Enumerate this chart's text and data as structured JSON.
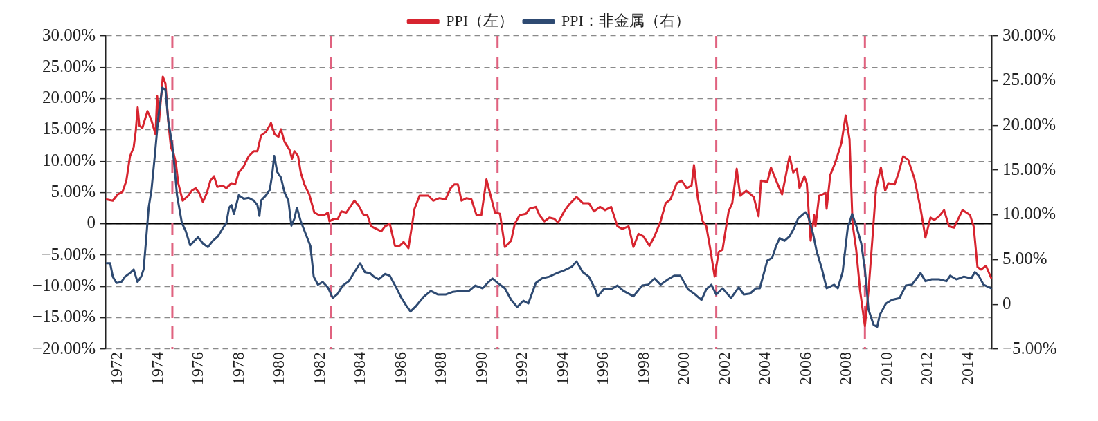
{
  "chart_data": {
    "type": "line",
    "legend": "top",
    "grid": "y",
    "marker": "none",
    "line_style": "solid",
    "xlim": [
      1971.42,
      2015.18
    ],
    "xticks": [
      1972,
      1974,
      1976,
      1978,
      1980,
      1982,
      1984,
      1986,
      1988,
      1990,
      1992,
      1994,
      1996,
      1998,
      2000,
      2002,
      2004,
      2006,
      2008,
      2010,
      2012,
      2014
    ],
    "ylim": [
      -20,
      30
    ],
    "yticks": [
      {
        "value": 30,
        "label": "30.00%"
      },
      {
        "value": 25,
        "label": "25.00%"
      },
      {
        "value": 20,
        "label": "20.00%"
      },
      {
        "value": 15,
        "label": "15.00%"
      },
      {
        "value": 10,
        "label": "10.00%"
      },
      {
        "value": 5,
        "label": "5.00%"
      },
      {
        "value": 0,
        "label": "0"
      },
      {
        "value": -5,
        "label": "−5.00%"
      },
      {
        "value": -10,
        "label": "−10.00%"
      },
      {
        "value": -15,
        "label": "−15.00%"
      },
      {
        "value": -20,
        "label": "−20.00%"
      }
    ],
    "y2lim": [
      -5,
      30
    ],
    "y2ticks": [
      {
        "value": 30,
        "label": "30.00%"
      },
      {
        "value": 25,
        "label": "25.00%"
      },
      {
        "value": 20,
        "label": "20.00%"
      },
      {
        "value": 15,
        "label": "15.00%"
      },
      {
        "value": 10,
        "label": "10.00%"
      },
      {
        "value": 5,
        "label": "5.00%"
      },
      {
        "value": 0,
        "label": "0"
      },
      {
        "value": -5,
        "label": "−5.00%"
      }
    ],
    "ref_lines": [
      {
        "axis": "y",
        "value": 0,
        "color": "#000000",
        "line_style": "solid"
      },
      {
        "axis": "x",
        "value": 1974.7,
        "color": "#e0627f",
        "line_style": "dashed"
      },
      {
        "axis": "x",
        "value": 1982.53,
        "color": "#e0627f",
        "line_style": "dashed"
      },
      {
        "axis": "x",
        "value": 1990.76,
        "color": "#e0627f",
        "line_style": "dashed"
      },
      {
        "axis": "x",
        "value": 2001.56,
        "color": "#e0627f",
        "line_style": "dashed"
      },
      {
        "axis": "x",
        "value": 2008.9,
        "color": "#e0627f",
        "line_style": "dashed"
      }
    ],
    "series": [
      {
        "name": "PPI（左）",
        "color": "#d7242f",
        "x": [
          1971.45,
          1971.76,
          1972.0,
          1972.24,
          1972.43,
          1972.61,
          1972.79,
          1972.89,
          1972.99,
          1973.07,
          1973.22,
          1973.47,
          1973.65,
          1973.87,
          1973.95,
          1974.04,
          1974.23,
          1974.36,
          1974.5,
          1974.63,
          1974.75,
          1974.87,
          1974.99,
          1975.21,
          1975.48,
          1975.66,
          1975.85,
          1976.03,
          1976.21,
          1976.4,
          1976.58,
          1976.76,
          1976.92,
          1977.19,
          1977.37,
          1977.62,
          1977.8,
          1977.98,
          1978.23,
          1978.47,
          1978.72,
          1978.9,
          1979.08,
          1979.33,
          1979.57,
          1979.75,
          1979.94,
          1980.06,
          1980.24,
          1980.49,
          1980.61,
          1980.73,
          1980.91,
          1981.04,
          1981.22,
          1981.46,
          1981.71,
          1981.95,
          1982.2,
          1982.38,
          1982.46,
          1982.68,
          1982.87,
          1983.05,
          1983.29,
          1983.48,
          1983.69,
          1983.9,
          1984.15,
          1984.33,
          1984.52,
          1985.02,
          1985.2,
          1985.44,
          1985.69,
          1985.93,
          1986.12,
          1986.36,
          1986.66,
          1986.91,
          1987.34,
          1987.58,
          1987.89,
          1988.19,
          1988.44,
          1988.62,
          1988.8,
          1988.98,
          1989.23,
          1989.47,
          1989.72,
          1989.96,
          1990.21,
          1990.45,
          1990.63,
          1990.88,
          1991.12,
          1991.43,
          1991.61,
          1991.85,
          1992.16,
          1992.34,
          1992.65,
          1992.83,
          1993.07,
          1993.32,
          1993.56,
          1993.75,
          1994.05,
          1994.3,
          1994.66,
          1994.97,
          1995.27,
          1995.52,
          1995.82,
          1996.07,
          1996.37,
          1996.68,
          1996.92,
          1997.23,
          1997.47,
          1997.72,
          1997.96,
          1998.26,
          1998.51,
          1998.81,
          1999.06,
          1999.3,
          1999.61,
          1999.85,
          2000.1,
          2000.34,
          2000.46,
          2000.65,
          2000.89,
          2001.07,
          2001.26,
          2001.48,
          2001.68,
          2001.87,
          2002.17,
          2002.35,
          2002.57,
          2002.74,
          2003.04,
          2003.41,
          2003.65,
          2003.77,
          2004.08,
          2004.26,
          2004.57,
          2004.81,
          2005.18,
          2005.36,
          2005.54,
          2005.67,
          2005.91,
          2006.03,
          2006.22,
          2006.4,
          2006.46,
          2006.64,
          2006.95,
          2007.01,
          2007.19,
          2007.44,
          2007.74,
          2007.95,
          2008.14,
          2008.29,
          2008.47,
          2008.66,
          2008.78,
          2008.9,
          2009.08,
          2009.27,
          2009.45,
          2009.69,
          2009.9,
          2010.06,
          2010.37,
          2010.55,
          2010.79,
          2011.04,
          2011.34,
          2011.65,
          2011.89,
          2012.14,
          2012.32,
          2012.56,
          2012.81,
          2013.05,
          2013.3,
          2013.48,
          2013.72,
          2014.09,
          2014.27,
          2014.46,
          2014.64,
          2014.88,
          2015.13
        ],
        "values": [
          3.9,
          3.7,
          4.7,
          5.1,
          6.9,
          10.8,
          12.2,
          14.7,
          18.6,
          15.7,
          15.3,
          18.0,
          16.7,
          14.3,
          20.4,
          16.3,
          23.5,
          22.4,
          16.3,
          12.2,
          11.4,
          9.8,
          6.5,
          3.7,
          4.5,
          5.3,
          5.7,
          4.9,
          3.5,
          4.9,
          6.9,
          7.6,
          5.9,
          6.1,
          5.7,
          6.5,
          6.3,
          8.2,
          9.2,
          10.8,
          11.6,
          11.6,
          14.1,
          14.7,
          16.1,
          14.3,
          13.9,
          15.1,
          13.1,
          11.8,
          10.4,
          11.6,
          10.8,
          8.2,
          6.3,
          4.7,
          1.8,
          1.4,
          1.4,
          1.8,
          0.4,
          0.8,
          0.8,
          2.0,
          1.8,
          2.7,
          3.7,
          2.9,
          1.4,
          1.4,
          -0.4,
          -1.2,
          -0.4,
          0,
          -3.5,
          -3.5,
          -2.9,
          -3.9,
          2.4,
          4.5,
          4.5,
          3.7,
          4.1,
          3.9,
          5.7,
          6.3,
          6.3,
          3.7,
          4.1,
          3.9,
          1.4,
          1.4,
          7.1,
          4.1,
          1.8,
          1.6,
          -3.7,
          -2.7,
          0,
          1.4,
          1.6,
          2.4,
          2.7,
          1.4,
          0.4,
          1.0,
          0.8,
          0.2,
          2.0,
          3.1,
          4.3,
          3.3,
          3.3,
          2.0,
          2.7,
          2.2,
          2.7,
          -0.4,
          -0.8,
          -0.4,
          -3.7,
          -1.6,
          -2.0,
          -3.5,
          -2.0,
          0.4,
          3.3,
          3.9,
          6.5,
          6.9,
          5.7,
          6.1,
          9.4,
          4.1,
          0.4,
          -0.4,
          -3.9,
          -8.4,
          -4.5,
          -4.1,
          2.0,
          3.3,
          8.8,
          4.5,
          5.3,
          4.3,
          1.2,
          6.9,
          6.7,
          9.0,
          6.5,
          4.7,
          10.8,
          8.2,
          8.8,
          5.7,
          7.6,
          6.5,
          -2.7,
          1.4,
          -0.4,
          4.5,
          4.9,
          2.4,
          7.8,
          9.8,
          12.9,
          17.3,
          13.5,
          0,
          -4.1,
          -10.6,
          -13.5,
          -16.3,
          -10.6,
          -2.4,
          5.7,
          9.0,
          5.3,
          6.5,
          6.3,
          8.0,
          10.8,
          10.2,
          7.3,
          2.4,
          -2.2,
          1.0,
          0.6,
          1.2,
          2.2,
          -0.4,
          -0.6,
          0.6,
          2.2,
          1.4,
          -0.4,
          -6.9,
          -7.3,
          -6.7,
          -8.6
        ]
      },
      {
        "name": "PPI：非金属（右）",
        "color": "#2e4a72",
        "axis": "y2",
        "x": [
          1971.45,
          1971.63,
          1971.76,
          1971.94,
          1972.18,
          1972.37,
          1972.61,
          1972.79,
          1972.98,
          1973.16,
          1973.28,
          1973.4,
          1973.53,
          1973.67,
          1973.83,
          1974.01,
          1974.2,
          1974.36,
          1974.5,
          1974.69,
          1974.81,
          1974.93,
          1975.17,
          1975.36,
          1975.58,
          1975.79,
          1975.97,
          1976.21,
          1976.46,
          1976.7,
          1976.95,
          1977.19,
          1977.37,
          1977.5,
          1977.62,
          1977.74,
          1977.98,
          1978.23,
          1978.47,
          1978.72,
          1978.9,
          1979.0,
          1979.08,
          1979.33,
          1979.51,
          1979.63,
          1979.73,
          1979.88,
          1980.06,
          1980.24,
          1980.43,
          1980.58,
          1980.73,
          1980.85,
          1981.04,
          1981.28,
          1981.52,
          1981.68,
          1981.89,
          1982.13,
          1982.38,
          1982.62,
          1982.87,
          1983.11,
          1983.42,
          1983.66,
          1983.97,
          1984.21,
          1984.45,
          1984.65,
          1984.89,
          1985.2,
          1985.44,
          1985.75,
          1985.99,
          1986.24,
          1986.46,
          1986.73,
          1987.09,
          1987.46,
          1987.82,
          1988.19,
          1988.56,
          1988.92,
          1989.35,
          1989.66,
          1990.02,
          1990.27,
          1990.51,
          1990.76,
          1991.12,
          1991.43,
          1991.73,
          1992.04,
          1992.28,
          1992.65,
          1992.95,
          1993.32,
          1993.69,
          1994.05,
          1994.42,
          1994.66,
          1994.97,
          1995.27,
          1995.58,
          1995.7,
          1996.01,
          1996.37,
          1996.68,
          1996.98,
          1997.47,
          1997.9,
          1998.2,
          1998.51,
          1998.81,
          1999.18,
          1999.48,
          1999.79,
          2000.16,
          2000.52,
          2000.83,
          2001.07,
          2001.32,
          2001.56,
          2001.87,
          2002.29,
          2002.67,
          2002.92,
          2003.22,
          2003.53,
          2003.71,
          2004.08,
          2004.32,
          2004.51,
          2004.69,
          2004.93,
          2005.18,
          2005.42,
          2005.6,
          2005.97,
          2006.09,
          2006.34,
          2006.52,
          2006.76,
          2007.01,
          2007.38,
          2007.56,
          2007.8,
          2008.05,
          2008.27,
          2008.47,
          2008.72,
          2008.9,
          2009.08,
          2009.33,
          2009.51,
          2009.63,
          2009.94,
          2010.24,
          2010.61,
          2010.92,
          2011.22,
          2011.65,
          2011.89,
          2012.2,
          2012.56,
          2012.93,
          2013.11,
          2013.42,
          2013.79,
          2014.15,
          2014.33,
          2014.52,
          2014.76,
          2015.13
        ],
        "values": [
          4.6,
          4.6,
          3.1,
          2.4,
          2.5,
          3.1,
          3.5,
          3.9,
          2.5,
          3.1,
          3.9,
          7.1,
          10.8,
          12.8,
          16.5,
          21.0,
          24.2,
          24.0,
          20.5,
          17.9,
          15.3,
          12.2,
          9.1,
          8.2,
          6.6,
          7.1,
          7.5,
          6.8,
          6.4,
          7.1,
          7.6,
          8.5,
          9.1,
          10.8,
          11.1,
          10.1,
          12.2,
          11.8,
          11.9,
          11.6,
          11.1,
          9.9,
          11.6,
          12.2,
          12.8,
          14.5,
          16.6,
          14.8,
          14.2,
          12.5,
          11.6,
          8.8,
          9.6,
          10.8,
          9.3,
          7.9,
          6.5,
          3.1,
          2.2,
          2.5,
          1.9,
          0.7,
          1.2,
          2.1,
          2.6,
          3.5,
          4.6,
          3.6,
          3.5,
          3.1,
          2.8,
          3.4,
          3.2,
          1.9,
          0.8,
          -0.1,
          -0.8,
          -0.2,
          0.8,
          1.5,
          1.1,
          1.1,
          1.4,
          1.5,
          1.5,
          2.1,
          1.8,
          2.4,
          2.9,
          2.4,
          1.8,
          0.5,
          -0.3,
          0.4,
          0.1,
          2.4,
          2.9,
          3.1,
          3.5,
          3.8,
          4.2,
          4.8,
          3.6,
          3.1,
          1.7,
          0.9,
          1.7,
          1.7,
          2.1,
          1.5,
          0.9,
          2.1,
          2.2,
          2.9,
          2.2,
          2.8,
          3.2,
          3.2,
          1.7,
          1.1,
          0.5,
          1.7,
          2.2,
          1.1,
          1.8,
          0.7,
          1.9,
          1.1,
          1.2,
          1.8,
          1.8,
          4.9,
          5.2,
          6.5,
          7.4,
          7.1,
          7.6,
          8.6,
          9.6,
          10.3,
          9.9,
          7.9,
          5.9,
          4.1,
          1.8,
          2.2,
          1.8,
          3.6,
          8.5,
          10.1,
          8.8,
          6.8,
          3.9,
          -0.6,
          -2.3,
          -2.5,
          -1.2,
          0.1,
          0.5,
          0.7,
          2.1,
          2.2,
          3.5,
          2.6,
          2.8,
          2.8,
          2.6,
          3.2,
          2.8,
          3.1,
          2.9,
          3.6,
          3.2,
          2.2,
          1.8
        ]
      }
    ]
  }
}
